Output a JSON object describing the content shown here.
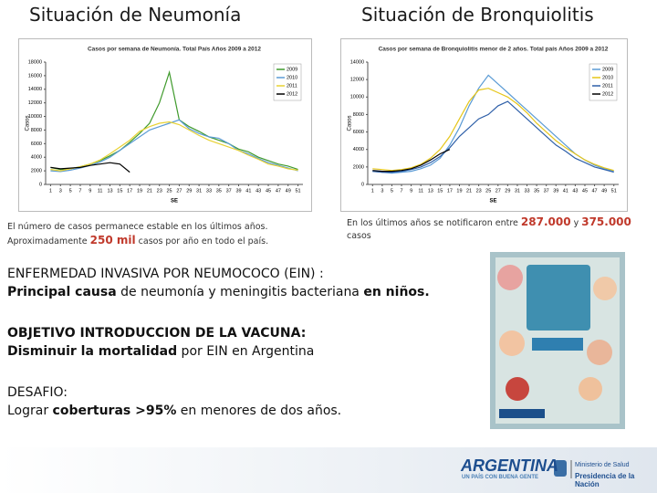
{
  "headers": [
    "Situación de Neumonía",
    "Situación de Bronquiolitis"
  ],
  "chart_data": [
    {
      "type": "line",
      "title": "Casos por semana de Neumonía. Total País Años 2009 a 2012",
      "xlabel": "SE",
      "ylabel": "Casos",
      "x": [
        1,
        3,
        5,
        7,
        9,
        11,
        13,
        15,
        17,
        19,
        21,
        23,
        25,
        27,
        29,
        31,
        33,
        35,
        37,
        39,
        41,
        43,
        45,
        47,
        49,
        51
      ],
      "xlim": [
        0,
        52
      ],
      "xticks": [
        1,
        3,
        5,
        7,
        9,
        11,
        13,
        15,
        17,
        19,
        21,
        23,
        25,
        27,
        29,
        31,
        33,
        35,
        37,
        39,
        41,
        43,
        45,
        47,
        49,
        51
      ],
      "ylim": [
        0,
        18000
      ],
      "yticks": [
        0,
        2000,
        4000,
        6000,
        8000,
        10000,
        12000,
        14000,
        16000,
        18000
      ],
      "legend": "top-right",
      "series": [
        {
          "name": "2009",
          "color": "#3f9a2c",
          "values": [
            2500,
            2200,
            2300,
            2600,
            3000,
            3500,
            4200,
            5000,
            6200,
            7500,
            9000,
            12000,
            16500,
            9500,
            8500,
            7800,
            7000,
            6500,
            6000,
            5200,
            4800,
            4000,
            3500,
            3000,
            2700,
            2200
          ]
        },
        {
          "name": "2010",
          "color": "#5b9bd5",
          "values": [
            2000,
            1900,
            2100,
            2400,
            2800,
            3300,
            4000,
            5000,
            6000,
            7000,
            8000,
            8500,
            9000,
            9500,
            8200,
            7500,
            7000,
            6800,
            6000,
            5000,
            4500,
            3800,
            3200,
            2800,
            2400,
            2000
          ]
        },
        {
          "name": "2011",
          "color": "#e8d233",
          "values": [
            2200,
            2000,
            2300,
            2600,
            3000,
            3600,
            4500,
            5500,
            6500,
            7800,
            8500,
            9000,
            9200,
            8800,
            8000,
            7200,
            6500,
            6000,
            5500,
            5000,
            4300,
            3700,
            3000,
            2700,
            2300,
            2100
          ]
        },
        {
          "name": "2012",
          "color": "#000000",
          "values": [
            2500,
            2300,
            2400,
            2500,
            2800,
            3000,
            3200,
            3000,
            1800,
            null,
            null,
            null,
            null,
            null,
            null,
            null,
            null,
            null,
            null,
            null,
            null,
            null,
            null,
            null,
            null,
            null
          ]
        }
      ]
    },
    {
      "type": "line",
      "title": "Casos por semana de Bronquiolitis menor de 2 años. Total país Años 2009 a 2012",
      "xlabel": "SE",
      "ylabel": "Casos",
      "x": [
        1,
        3,
        5,
        7,
        9,
        11,
        13,
        15,
        17,
        19,
        21,
        23,
        25,
        27,
        29,
        31,
        33,
        35,
        37,
        39,
        41,
        43,
        45,
        47,
        49,
        51
      ],
      "xlim": [
        0,
        52
      ],
      "xticks": [
        1,
        3,
        5,
        7,
        9,
        11,
        13,
        15,
        17,
        19,
        21,
        23,
        25,
        27,
        29,
        31,
        33,
        35,
        37,
        39,
        41,
        43,
        45,
        47,
        49,
        51
      ],
      "ylim": [
        0,
        14000
      ],
      "yticks": [
        0,
        2000,
        4000,
        6000,
        8000,
        10000,
        12000,
        14000
      ],
      "legend": "top-right",
      "series": [
        {
          "name": "2009",
          "color": "#5b9bd5",
          "values": [
            1500,
            1400,
            1300,
            1400,
            1500,
            1800,
            2200,
            3000,
            4500,
            6500,
            9000,
            11000,
            12500,
            11500,
            10500,
            9500,
            8500,
            7500,
            6500,
            5500,
            4500,
            3500,
            2800,
            2200,
            1800,
            1500
          ]
        },
        {
          "name": "2010",
          "color": "#e6c619",
          "values": [
            1800,
            1700,
            1600,
            1700,
            1900,
            2300,
            3000,
            4000,
            5500,
            7500,
            9500,
            10800,
            11000,
            10500,
            10000,
            9200,
            8200,
            7000,
            6000,
            5000,
            4200,
            3500,
            2800,
            2300,
            1900,
            1600
          ]
        },
        {
          "name": "2011",
          "color": "#2e5fa8",
          "values": [
            1500,
            1400,
            1400,
            1500,
            1700,
            2000,
            2500,
            3200,
            4200,
            5500,
            6500,
            7500,
            8000,
            9000,
            9500,
            8500,
            7500,
            6500,
            5500,
            4500,
            3800,
            3000,
            2500,
            2000,
            1700,
            1400
          ]
        },
        {
          "name": "2012",
          "color": "#000000",
          "values": [
            1600,
            1500,
            1500,
            1600,
            1800,
            2200,
            2800,
            3500,
            4000,
            null,
            null,
            null,
            null,
            null,
            null,
            null,
            null,
            null,
            null,
            null,
            null,
            null,
            null,
            null,
            null,
            null
          ]
        }
      ]
    }
  ],
  "captions": [
    {
      "before": "El número de casos permanece estable en los últimos años. Aproximadamente ",
      "highlight": "250 mil",
      "after": " casos por año en todo el país."
    },
    {
      "before": "En los últimos años se notificaron entre ",
      "highlight": "287.000",
      "middle": " y ",
      "highlight2": "375.000",
      "after": " casos"
    }
  ],
  "sections": [
    {
      "lines": [
        [
          {
            "text": "ENFERMEDAD INVASIVA POR NEUMOCOCO (EIN) :",
            "bold": false
          }
        ],
        [
          {
            "text": "Principal causa",
            "bold": true
          },
          {
            "text": " de neumonía y meningitis bacteriana ",
            "bold": false
          },
          {
            "text": "en niños.",
            "bold": true
          }
        ]
      ]
    },
    {
      "lines": [
        [
          {
            "text": "OBJETIVO INTRODUCCION DE LA VACUNA:",
            "bold": true
          }
        ],
        [
          {
            "text": "Disminuir la mortalidad",
            "bold": true
          },
          {
            "text": " por EIN en Argentina",
            "bold": false
          }
        ]
      ]
    },
    {
      "lines": [
        [
          {
            "text": "DESAFIO:",
            "bold": false
          }
        ],
        [
          {
            "text": "Lograr ",
            "bold": false
          },
          {
            "text": "coberturas >95%",
            "bold": true
          },
          {
            "text": " en menores de dos años.",
            "bold": false
          }
        ]
      ]
    }
  ],
  "footer": {
    "brand": "ARGENTINA",
    "slogan": "UN PAÍS CON BUENA GENTE",
    "ministry": "Ministerio de Salud",
    "presidency": "Presidencia de la Nación"
  }
}
